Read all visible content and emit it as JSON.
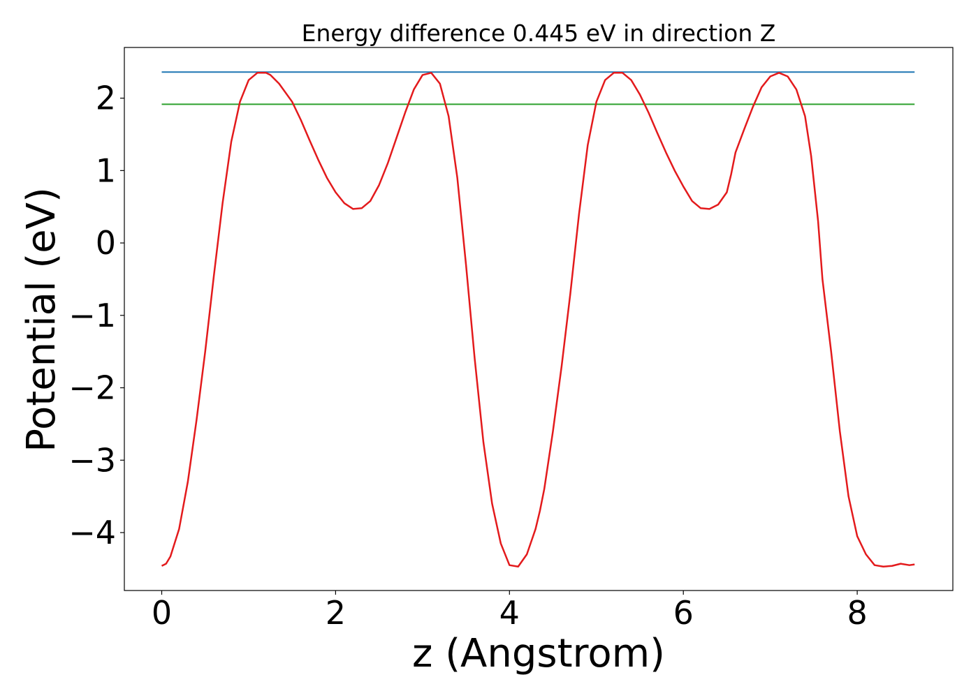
{
  "chart_data": {
    "type": "line",
    "title": "Energy difference 0.445 eV in direction Z",
    "xlabel": "z (Angstrom)",
    "ylabel": "Potential (eV)",
    "xlim": [
      -0.43,
      9.1
    ],
    "ylim": [
      -4.8,
      2.7
    ],
    "xticks": [
      0,
      2,
      4,
      6,
      8
    ],
    "xtick_labels": [
      "0",
      "2",
      "4",
      "6",
      "8"
    ],
    "yticks": [
      -4,
      -3,
      -2,
      -1,
      0,
      1,
      2
    ],
    "ytick_labels": [
      "−4",
      "−3",
      "−2",
      "−1",
      "0",
      "1",
      "2"
    ],
    "grid": false,
    "legend": "none",
    "series": [
      {
        "color": "#1f77b4",
        "kind": "hline",
        "x": [
          0,
          8.66
        ],
        "y": [
          2.36,
          2.36
        ]
      },
      {
        "color": "#2ca02c",
        "kind": "hline",
        "x": [
          0,
          8.66
        ],
        "y": [
          1.915,
          1.915
        ]
      },
      {
        "color": "#e31a1c",
        "kind": "curve",
        "x": [
          0,
          0.05,
          0.1,
          0.2,
          0.3,
          0.4,
          0.5,
          0.6,
          0.7,
          0.8,
          0.9,
          1.0,
          1.1,
          1.2,
          1.25,
          1.35,
          1.5,
          1.6,
          1.7,
          1.8,
          1.9,
          2.0,
          2.1,
          2.2,
          2.3,
          2.4,
          2.5,
          2.6,
          2.7,
          2.8,
          2.9,
          3.0,
          3.1,
          3.2,
          3.3,
          3.4,
          3.5,
          3.6,
          3.7,
          3.8,
          3.9,
          4.0,
          4.1,
          4.2,
          4.3,
          4.35,
          4.4,
          4.5,
          4.6,
          4.7,
          4.8,
          4.9,
          5.0,
          5.1,
          5.2,
          5.3,
          5.4,
          5.5,
          5.6,
          5.7,
          5.8,
          5.9,
          6.0,
          6.1,
          6.2,
          6.3,
          6.4,
          6.5,
          6.55,
          6.6,
          6.7,
          6.8,
          6.9,
          7.0,
          7.1,
          7.2,
          7.3,
          7.4,
          7.47,
          7.55,
          7.6,
          7.7,
          7.8,
          7.9,
          8.0,
          8.1,
          8.2,
          8.3,
          8.4,
          8.5,
          8.6,
          8.66
        ],
        "y": [
          -4.46,
          -4.43,
          -4.33,
          -3.95,
          -3.3,
          -2.45,
          -1.5,
          -0.45,
          0.55,
          1.4,
          1.95,
          2.25,
          2.35,
          2.35,
          2.32,
          2.2,
          1.95,
          1.7,
          1.42,
          1.15,
          0.9,
          0.7,
          0.55,
          0.47,
          0.48,
          0.58,
          0.8,
          1.1,
          1.45,
          1.8,
          2.12,
          2.32,
          2.35,
          2.2,
          1.75,
          0.9,
          -0.3,
          -1.6,
          -2.75,
          -3.6,
          -4.15,
          -4.45,
          -4.47,
          -4.3,
          -3.95,
          -3.7,
          -3.4,
          -2.6,
          -1.7,
          -0.7,
          0.4,
          1.35,
          1.95,
          2.25,
          2.35,
          2.35,
          2.25,
          2.05,
          1.8,
          1.52,
          1.25,
          1.0,
          0.78,
          0.58,
          0.48,
          0.47,
          0.53,
          0.7,
          0.95,
          1.25,
          1.57,
          1.88,
          2.15,
          2.3,
          2.35,
          2.3,
          2.12,
          1.75,
          1.2,
          0.3,
          -0.5,
          -1.5,
          -2.6,
          -3.5,
          -4.05,
          -4.3,
          -4.45,
          -4.47,
          -4.46,
          -4.43,
          -4.45,
          -4.44
        ]
      }
    ]
  }
}
